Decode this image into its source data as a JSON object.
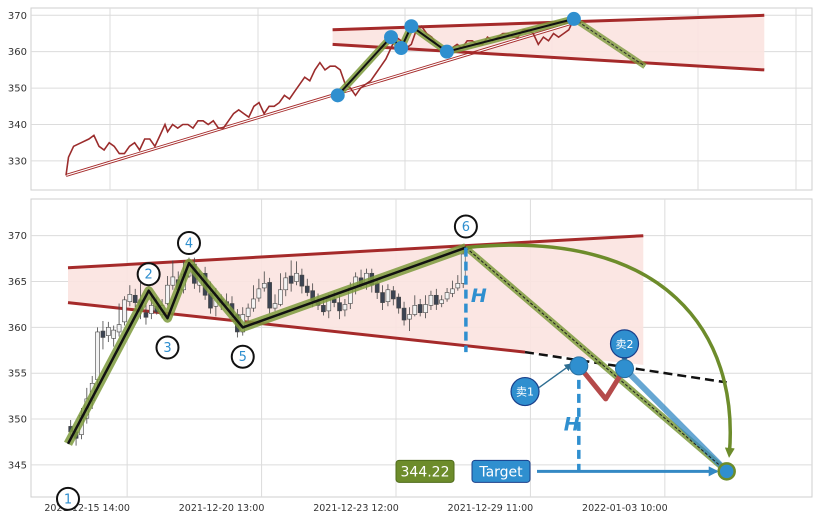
{
  "chart_data": [
    {
      "panel": "overview",
      "type": "line",
      "ylim": [
        322,
        372
      ],
      "xlim": [
        0,
        280
      ],
      "y_ticks": [
        330,
        340,
        350,
        360,
        370
      ],
      "grid": true,
      "colors": {
        "price_line": "#9b2c2c",
        "wedge_line": "#a52a2a",
        "wedge_fill": "#fbe3e0",
        "pattern_outline": "#5a7a1f",
        "pattern_core": "#111111",
        "marker": "#2f8fcf",
        "projection": "#7d9a3c"
      },
      "price_series": [
        [
          0,
          326
        ],
        [
          1,
          331
        ],
        [
          3,
          334
        ],
        [
          6,
          335
        ],
        [
          9,
          336
        ],
        [
          11,
          337
        ],
        [
          13,
          334
        ],
        [
          15,
          333
        ],
        [
          17,
          335
        ],
        [
          19,
          334
        ],
        [
          21,
          332
        ],
        [
          23,
          332
        ],
        [
          25,
          334
        ],
        [
          27,
          335
        ],
        [
          29,
          333
        ],
        [
          31,
          336
        ],
        [
          33,
          336
        ],
        [
          35,
          334
        ],
        [
          37,
          337
        ],
        [
          39,
          340
        ],
        [
          40,
          338
        ],
        [
          42,
          340
        ],
        [
          44,
          339
        ],
        [
          46,
          340
        ],
        [
          48,
          340
        ],
        [
          50,
          339
        ],
        [
          52,
          341
        ],
        [
          54,
          341
        ],
        [
          56,
          340
        ],
        [
          58,
          341
        ],
        [
          60,
          339
        ],
        [
          62,
          339
        ],
        [
          64,
          341
        ],
        [
          66,
          343
        ],
        [
          68,
          344
        ],
        [
          70,
          343
        ],
        [
          72,
          342
        ],
        [
          74,
          345
        ],
        [
          76,
          346
        ],
        [
          78,
          343
        ],
        [
          80,
          345
        ],
        [
          82,
          345
        ],
        [
          84,
          346
        ],
        [
          86,
          348
        ],
        [
          88,
          347
        ],
        [
          90,
          349
        ],
        [
          92,
          351
        ],
        [
          94,
          353
        ],
        [
          96,
          352
        ],
        [
          98,
          355
        ],
        [
          100,
          357
        ],
        [
          102,
          355
        ],
        [
          104,
          356
        ],
        [
          106,
          356
        ],
        [
          108,
          355
        ],
        [
          110,
          351
        ],
        [
          112,
          350
        ],
        [
          114,
          348
        ],
        [
          116,
          350
        ],
        [
          118,
          351
        ],
        [
          120,
          352
        ],
        [
          122,
          354
        ],
        [
          124,
          356
        ],
        [
          126,
          358
        ],
        [
          128,
          361
        ],
        [
          130,
          364
        ],
        [
          132,
          363
        ],
        [
          134,
          361
        ],
        [
          136,
          362
        ],
        [
          138,
          366
        ],
        [
          140,
          367
        ],
        [
          142,
          365
        ],
        [
          144,
          364
        ],
        [
          146,
          362
        ],
        [
          148,
          361
        ],
        [
          150,
          361
        ],
        [
          152,
          361
        ],
        [
          154,
          362
        ],
        [
          156,
          361
        ],
        [
          158,
          363
        ],
        [
          160,
          363
        ],
        [
          162,
          362
        ],
        [
          164,
          362
        ],
        [
          166,
          364
        ],
        [
          168,
          363
        ],
        [
          170,
          364
        ],
        [
          172,
          365
        ],
        [
          174,
          365
        ],
        [
          176,
          364
        ],
        [
          178,
          364
        ],
        [
          180,
          366
        ],
        [
          182,
          366
        ],
        [
          184,
          365
        ],
        [
          186,
          362
        ],
        [
          188,
          364
        ],
        [
          190,
          363
        ],
        [
          192,
          365
        ],
        [
          194,
          364
        ],
        [
          196,
          365
        ],
        [
          198,
          366
        ],
        [
          200,
          369
        ]
      ],
      "wedge": {
        "upper": [
          [
            105,
            366
          ],
          [
            275,
            370
          ]
        ],
        "lower": [
          [
            105,
            362
          ],
          [
            275,
            355
          ]
        ]
      },
      "pattern_points": [
        [
          107,
          348
        ],
        [
          128,
          364
        ],
        [
          132,
          361
        ],
        [
          136,
          367
        ],
        [
          150,
          360
        ],
        [
          200,
          369
        ]
      ],
      "projection_line": [
        [
          200,
          369
        ],
        [
          228,
          356
        ]
      ],
      "support_line": [
        [
          0,
          326
        ],
        [
          200,
          368
        ]
      ]
    },
    {
      "panel": "main",
      "type": "candlestick",
      "ylim": [
        341.5,
        374
      ],
      "xlim": [
        0,
        260
      ],
      "y_ticks": [
        345,
        350,
        355,
        360,
        365,
        370
      ],
      "x_ticks": [
        "2021-12-15 14:00",
        "2021-12-20 13:00",
        "2021-12-23 12:00",
        "2021-12-29 11:00",
        "2022-01-03 10:00"
      ],
      "x_tick_positions": [
        22,
        72,
        122,
        172,
        222
      ],
      "grid": true,
      "colors": {
        "up": "#f3f3f3",
        "down": "#3b4352",
        "wedge_line": "#a52a2a",
        "wedge_fill": "#fbe3e0",
        "pattern_outline": "#7d9a3c",
        "pattern_core": "#111111",
        "marker": "#2f8fcf",
        "label_text": "#2f8fcf",
        "sell_path": "#b54a4a",
        "target_line": "#3489c4",
        "target_arrow": "#6d8c2b",
        "price_badge": "#6d8c2b",
        "target_badge": "#2f8fcf"
      },
      "wedge": {
        "upper": [
          [
            0,
            366.5
          ],
          [
            214,
            370
          ]
        ],
        "lower": [
          [
            0,
            362.7
          ],
          [
            170,
            357.3
          ]
        ]
      },
      "breakdown_line": [
        [
          170,
          357.3
        ],
        [
          245,
          354
        ]
      ],
      "pattern": [
        {
          "label": "1",
          "x": 0,
          "y": 347.3
        },
        {
          "label": "2",
          "x": 30,
          "y": 364
        },
        {
          "label": "3",
          "x": 37,
          "y": 361
        },
        {
          "label": "4",
          "x": 45,
          "y": 367
        },
        {
          "label": "5",
          "x": 65,
          "y": 360
        },
        {
          "label": "6",
          "x": 148,
          "y": 368.7
        }
      ],
      "pattern_label_offsets": {
        "1": -6,
        "2": 1.8,
        "3": -3.2,
        "4": 2.2,
        "5": -3.2,
        "6": 2.3
      },
      "height_marker": {
        "label": "H",
        "x": 148,
        "from": 368.7,
        "to": 357.3
      },
      "sell_path": [
        [
          190,
          355.8
        ],
        [
          200,
          352.2
        ],
        [
          207,
          355.5
        ]
      ],
      "sell_points": [
        {
          "label": "卖1",
          "x": 190,
          "y": 355.8,
          "label_x": 170,
          "label_y": 353
        },
        {
          "label": "卖2",
          "x": 207,
          "y": 355.5,
          "label_x": 207,
          "label_y": 358.2
        }
      ],
      "target_height": {
        "label": "H",
        "x": 190,
        "from": 355.8,
        "to": 344.3
      },
      "projection_line": [
        [
          148,
          368.7
        ],
        [
          245,
          344.3
        ]
      ],
      "curved_arrow": {
        "from": [
          148,
          368.7
        ],
        "to": [
          246,
          346.2
        ]
      },
      "target": {
        "price_label": "344.22",
        "target_label": "Target",
        "x": 245,
        "y": 344.3
      },
      "candles": [
        [
          1,
          349.2,
          348.6,
          349.9,
          348.1
        ],
        [
          3,
          348.6,
          347.9,
          349.2,
          347.1
        ],
        [
          5,
          348.3,
          350.4,
          351.2,
          347.8
        ],
        [
          7,
          350.1,
          352.2,
          353.4,
          349.5
        ],
        [
          9,
          352.0,
          353.9,
          354.7,
          351.1
        ],
        [
          11,
          354.3,
          359.5,
          360.0,
          353.5
        ],
        [
          13,
          359.6,
          358.9,
          360.7,
          357.6
        ],
        [
          15,
          359.1,
          360.0,
          360.6,
          358.4
        ],
        [
          17,
          358.8,
          359.7,
          360.2,
          357.9
        ],
        [
          19,
          359.5,
          360.3,
          362.6,
          359.0
        ],
        [
          21,
          360.6,
          363.0,
          363.4,
          360.2
        ],
        [
          23,
          362.8,
          363.6,
          364.6,
          362.3
        ],
        [
          25,
          363.5,
          362.7,
          364.2,
          362.2
        ],
        [
          27,
          363.0,
          361.8,
          364.9,
          360.9
        ],
        [
          29,
          361.6,
          361.1,
          362.6,
          360.3
        ],
        [
          31,
          361.5,
          362.4,
          363.4,
          360.9
        ],
        [
          33,
          362.3,
          361.7,
          363.3,
          361.4
        ],
        [
          35,
          361.4,
          362.4,
          363.1,
          361.0
        ],
        [
          37,
          362.6,
          364.6,
          365.6,
          362.4
        ],
        [
          39,
          364.6,
          365.5,
          367.3,
          364.1
        ],
        [
          41,
          365.2,
          364.1,
          366.1,
          363.7
        ],
        [
          43,
          364.1,
          365.8,
          367.2,
          363.7
        ],
        [
          45,
          365.6,
          366.6,
          367.6,
          365.4
        ],
        [
          47,
          366.9,
          364.8,
          367.6,
          364.2
        ],
        [
          49,
          364.6,
          365.8,
          366.2,
          363.8
        ],
        [
          51,
          365.9,
          363.5,
          366.6,
          363.0
        ],
        [
          53,
          363.7,
          362.1,
          365.0,
          361.5
        ],
        [
          55,
          362.3,
          363.5,
          364.3,
          361.2
        ],
        [
          57,
          363.1,
          362.7,
          363.6,
          361.9
        ],
        [
          59,
          362.8,
          362.4,
          363.7,
          361.9
        ],
        [
          61,
          362.6,
          361.4,
          363.4,
          361.0
        ],
        [
          63,
          361.4,
          359.5,
          362.0,
          358.9
        ],
        [
          65,
          359.5,
          361.4,
          362.2,
          359.1
        ],
        [
          67,
          361.2,
          362.1,
          362.6,
          360.6
        ],
        [
          69,
          362.1,
          363.1,
          364.6,
          361.7
        ],
        [
          71,
          363.2,
          364.2,
          365.3,
          362.8
        ],
        [
          73,
          364.3,
          364.8,
          366.1,
          363.9
        ],
        [
          75,
          364.9,
          362.1,
          365.4,
          361.5
        ],
        [
          77,
          362.1,
          362.6,
          363.6,
          361.8
        ],
        [
          79,
          362.5,
          364.1,
          365.9,
          362.3
        ],
        [
          81,
          364.1,
          365.4,
          366.0,
          363.4
        ],
        [
          83,
          365.6,
          364.8,
          367.3,
          363.9
        ],
        [
          85,
          365.0,
          365.9,
          367.2,
          364.6
        ],
        [
          87,
          365.7,
          364.5,
          366.4,
          363.7
        ],
        [
          89,
          364.5,
          363.8,
          365.3,
          363.4
        ],
        [
          91,
          364.0,
          362.9,
          364.8,
          362.2
        ],
        [
          93,
          362.8,
          362.4,
          363.7,
          361.9
        ],
        [
          95,
          362.4,
          361.7,
          363.3,
          361.3
        ],
        [
          97,
          361.8,
          363.1,
          363.6,
          361.0
        ],
        [
          99,
          363.1,
          362.7,
          363.9,
          362.2
        ],
        [
          101,
          362.7,
          361.8,
          363.5,
          360.9
        ],
        [
          103,
          361.9,
          362.5,
          363.1,
          361.2
        ],
        [
          105,
          362.6,
          364.3,
          364.9,
          362.0
        ],
        [
          107,
          364.5,
          365.5,
          366.0,
          363.6
        ],
        [
          109,
          365.4,
          364.7,
          366.3,
          364.3
        ],
        [
          111,
          364.8,
          365.9,
          366.4,
          364.1
        ],
        [
          113,
          365.9,
          364.6,
          366.4,
          363.8
        ],
        [
          115,
          364.8,
          363.8,
          365.3,
          363.1
        ],
        [
          117,
          363.8,
          362.7,
          364.6,
          361.9
        ],
        [
          119,
          362.8,
          364.1,
          364.7,
          362.3
        ],
        [
          121,
          364.0,
          363.1,
          364.5,
          362.4
        ],
        [
          123,
          363.3,
          362.1,
          363.7,
          361.5
        ],
        [
          125,
          362.1,
          360.8,
          362.8,
          360.2
        ],
        [
          127,
          360.9,
          361.4,
          362.2,
          359.6
        ],
        [
          129,
          361.4,
          362.4,
          363.5,
          361.2
        ],
        [
          131,
          362.5,
          361.6,
          363.1,
          361.2
        ],
        [
          133,
          361.6,
          362.5,
          363.5,
          361.0
        ],
        [
          135,
          362.4,
          363.5,
          364.0,
          361.9
        ],
        [
          137,
          363.5,
          362.5,
          364.2,
          361.9
        ],
        [
          139,
          362.6,
          363.0,
          363.5,
          362.2
        ],
        [
          141,
          363.1,
          363.8,
          364.3,
          362.8
        ],
        [
          143,
          363.7,
          364.2,
          365.1,
          363.3
        ],
        [
          145,
          364.3,
          364.8,
          365.7,
          364.0
        ],
        [
          147,
          364.8,
          368.0,
          368.8,
          364.3
        ]
      ]
    }
  ]
}
